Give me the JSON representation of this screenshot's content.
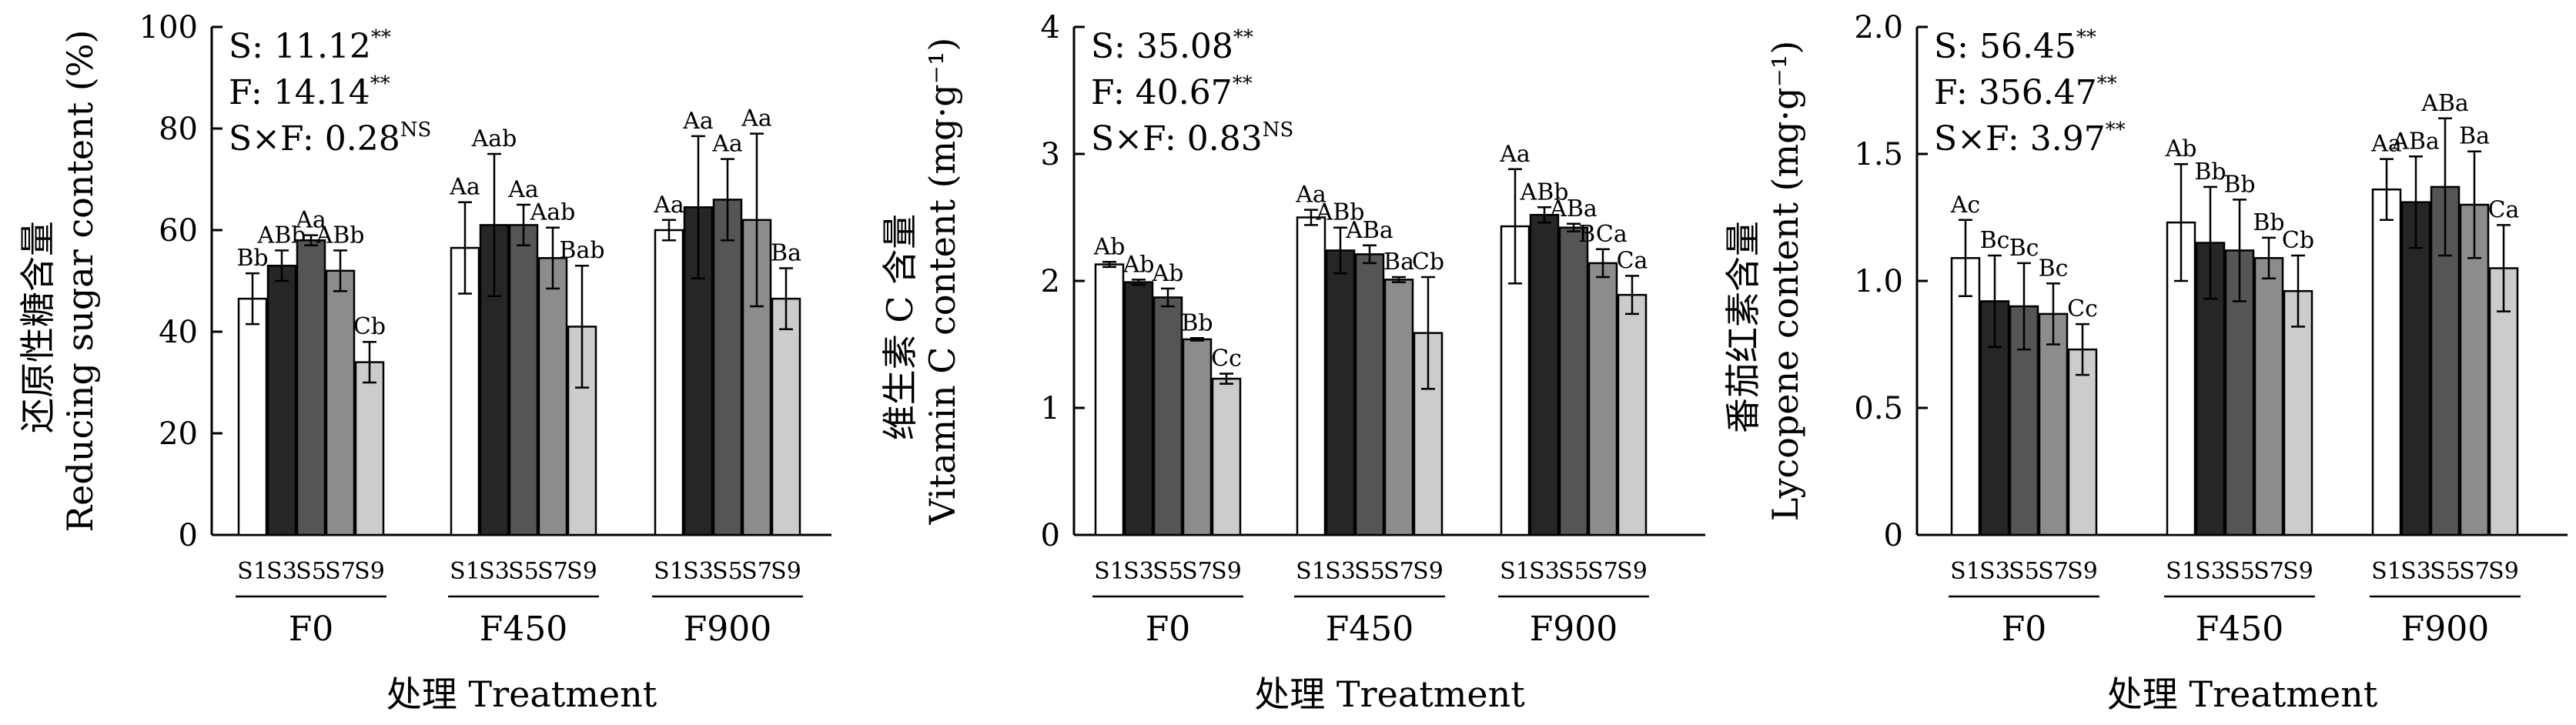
{
  "chart_data": [
    {
      "type": "bar",
      "ylabel_cn": "还原性糖含量",
      "ylabel_en": "Reducing sugar content (%)",
      "ylim": [
        0,
        100
      ],
      "yticks": [
        "0",
        "20",
        "40",
        "60",
        "80",
        "100"
      ],
      "ytick_values": [
        0,
        20,
        40,
        60,
        80,
        100
      ],
      "stats": [
        {
          "text": "S: 11.12",
          "sup": "**"
        },
        {
          "text": "F: 14.14",
          "sup": "**"
        },
        {
          "text": "S×F: 0.28",
          "sup": "NS"
        }
      ],
      "xlabel": "处理 Treatment",
      "samples": [
        "S1",
        "S3",
        "S5",
        "S7",
        "S9"
      ],
      "groups": [
        {
          "name": "F0",
          "values": [
            46.5,
            53,
            58,
            52,
            34
          ],
          "errors": [
            5,
            3,
            1,
            4,
            4
          ],
          "labels": [
            "Bb",
            "ABb",
            "Aa",
            "ABb",
            "Cb"
          ]
        },
        {
          "name": "F450",
          "values": [
            56.5,
            61,
            61,
            54.5,
            41
          ],
          "errors": [
            9,
            14,
            4,
            6,
            12
          ],
          "labels": [
            "Aa",
            "Aab",
            "Aa",
            "Aab",
            "Bab"
          ]
        },
        {
          "name": "F900",
          "values": [
            60,
            64.5,
            66,
            62,
            46.5
          ],
          "errors": [
            2,
            14,
            8,
            17,
            6
          ],
          "labels": [
            "Aa",
            "Aa",
            "Aa",
            "Aa",
            "Ba"
          ]
        }
      ]
    },
    {
      "type": "bar",
      "ylabel_cn": "维生素 C 含量",
      "ylabel_en": "Vitamin C content (mg·g⁻¹)",
      "ylim": [
        0,
        4
      ],
      "yticks": [
        "0",
        "1",
        "2",
        "3",
        "4"
      ],
      "ytick_values": [
        0,
        1,
        2,
        3,
        4
      ],
      "stats": [
        {
          "text": "S: 35.08",
          "sup": "**"
        },
        {
          "text": "F: 40.67",
          "sup": "**"
        },
        {
          "text": "S×F: 0.83",
          "sup": "NS"
        }
      ],
      "xlabel": "处理 Treatment",
      "samples": [
        "S1",
        "S3",
        "S5",
        "S7",
        "S9"
      ],
      "groups": [
        {
          "name": "F0",
          "values": [
            2.13,
            1.99,
            1.87,
            1.54,
            1.23
          ],
          "errors": [
            0.02,
            0.02,
            0.07,
            0.01,
            0.04
          ],
          "labels": [
            "Ab",
            "Ab",
            "Ab",
            "Bb",
            "Cc"
          ]
        },
        {
          "name": "F450",
          "values": [
            2.5,
            2.24,
            2.21,
            2.01,
            1.59
          ],
          "errors": [
            0.06,
            0.18,
            0.07,
            0.02,
            0.44
          ],
          "labels": [
            "Aa",
            "ABb",
            "ABa",
            "Ba",
            "Cb"
          ]
        },
        {
          "name": "F900",
          "values": [
            2.43,
            2.52,
            2.42,
            2.14,
            1.89
          ],
          "errors": [
            0.45,
            0.06,
            0.03,
            0.11,
            0.15
          ],
          "labels": [
            "Aa",
            "ABb",
            "ABa",
            "BCa",
            "Ca"
          ]
        }
      ]
    },
    {
      "type": "bar",
      "ylabel_cn": "番茄红素含量",
      "ylabel_en": "Lycopene content (mg·g⁻¹)",
      "ylim": [
        0,
        2.0
      ],
      "yticks": [
        "0",
        "0.5",
        "1.0",
        "1.5",
        "2.0"
      ],
      "ytick_values": [
        0,
        0.5,
        1.0,
        1.5,
        2.0
      ],
      "stats": [
        {
          "text": "S: 56.45",
          "sup": "**"
        },
        {
          "text": "F: 356.47",
          "sup": "**"
        },
        {
          "text": "S×F: 3.97",
          "sup": "**"
        }
      ],
      "xlabel": "处理 Treatment",
      "samples": [
        "S1",
        "S3",
        "S5",
        "S7",
        "S9"
      ],
      "groups": [
        {
          "name": "F0",
          "values": [
            1.09,
            0.92,
            0.9,
            0.87,
            0.73
          ],
          "errors": [
            0.15,
            0.18,
            0.17,
            0.12,
            0.1
          ],
          "labels": [
            "Ac",
            "Bc",
            "Bc",
            "Bc",
            "Cc"
          ]
        },
        {
          "name": "F450",
          "values": [
            1.23,
            1.15,
            1.12,
            1.09,
            0.96
          ],
          "errors": [
            0.23,
            0.22,
            0.2,
            0.08,
            0.14
          ],
          "labels": [
            "Ab",
            "Bb",
            "Bb",
            "Bb",
            "Cb"
          ]
        },
        {
          "name": "F900",
          "values": [
            1.36,
            1.31,
            1.37,
            1.3,
            1.05
          ],
          "errors": [
            0.12,
            0.18,
            0.27,
            0.21,
            0.17
          ],
          "labels": [
            "Aa",
            "ABa",
            "ABa",
            "Ba",
            "Ca"
          ]
        }
      ]
    }
  ],
  "colors": {
    "series": [
      "#ffffff",
      "#262626",
      "#555555",
      "#8c8c8c",
      "#cccccc"
    ],
    "stroke": "#000000"
  }
}
